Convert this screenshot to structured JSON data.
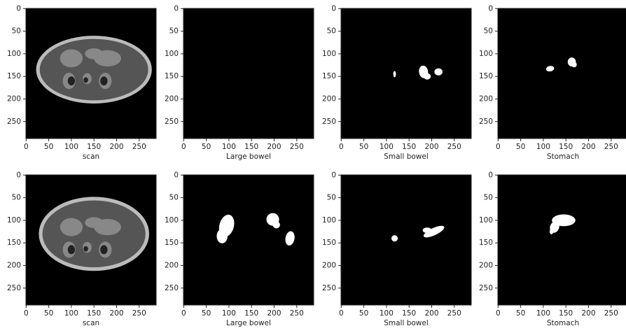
{
  "chart_data": [
    {
      "type": "image",
      "xlabel": "scan",
      "xlim": [
        -0.5,
        287.5
      ],
      "ylim": [
        287.5,
        -0.5
      ],
      "xticks": [
        0,
        50,
        100,
        150,
        200,
        250
      ],
      "yticks": [
        0,
        50,
        100,
        150,
        200,
        250
      ]
    },
    {
      "type": "image",
      "xlabel": "Large bowel",
      "xlim": [
        -0.5,
        287.5
      ],
      "ylim": [
        287.5,
        -0.5
      ],
      "xticks": [
        0,
        50,
        100,
        150,
        200,
        250
      ],
      "yticks": [
        0,
        50,
        100,
        150,
        200,
        250
      ]
    },
    {
      "type": "image",
      "xlabel": "Small bowel",
      "xlim": [
        -0.5,
        287.5
      ],
      "ylim": [
        287.5,
        -0.5
      ],
      "xticks": [
        0,
        50,
        100,
        150,
        200,
        250
      ],
      "yticks": [
        0,
        50,
        100,
        150,
        200,
        250
      ]
    },
    {
      "type": "image",
      "xlabel": "Stomach",
      "xlim": [
        -0.5,
        287.5
      ],
      "ylim": [
        287.5,
        -0.5
      ],
      "xticks": [
        0,
        50,
        100,
        150,
        200,
        250
      ],
      "yticks": [
        0,
        50,
        100,
        150,
        200,
        250
      ]
    },
    {
      "type": "image",
      "xlabel": "scan",
      "xlim": [
        -0.5,
        287.5
      ],
      "ylim": [
        287.5,
        -0.5
      ],
      "xticks": [
        0,
        50,
        100,
        150,
        200,
        250
      ],
      "yticks": [
        0,
        50,
        100,
        150,
        200,
        250
      ]
    },
    {
      "type": "image",
      "xlabel": "Large bowel",
      "xlim": [
        -0.5,
        287.5
      ],
      "ylim": [
        287.5,
        -0.5
      ],
      "xticks": [
        0,
        50,
        100,
        150,
        200,
        250
      ],
      "yticks": [
        0,
        50,
        100,
        150,
        200,
        250
      ]
    },
    {
      "type": "image",
      "xlabel": "Small bowel",
      "xlim": [
        -0.5,
        287.5
      ],
      "ylim": [
        287.5,
        -0.5
      ],
      "xticks": [
        0,
        50,
        100,
        150,
        200,
        250
      ],
      "yticks": [
        0,
        50,
        100,
        150,
        200,
        250
      ]
    },
    {
      "type": "image",
      "xlabel": "Stomach",
      "xlim": [
        -0.5,
        287.5
      ],
      "ylim": [
        287.5,
        -0.5
      ],
      "xticks": [
        0,
        50,
        100,
        150,
        200,
        250
      ],
      "yticks": [
        0,
        50,
        100,
        150,
        200,
        250
      ]
    }
  ]
}
